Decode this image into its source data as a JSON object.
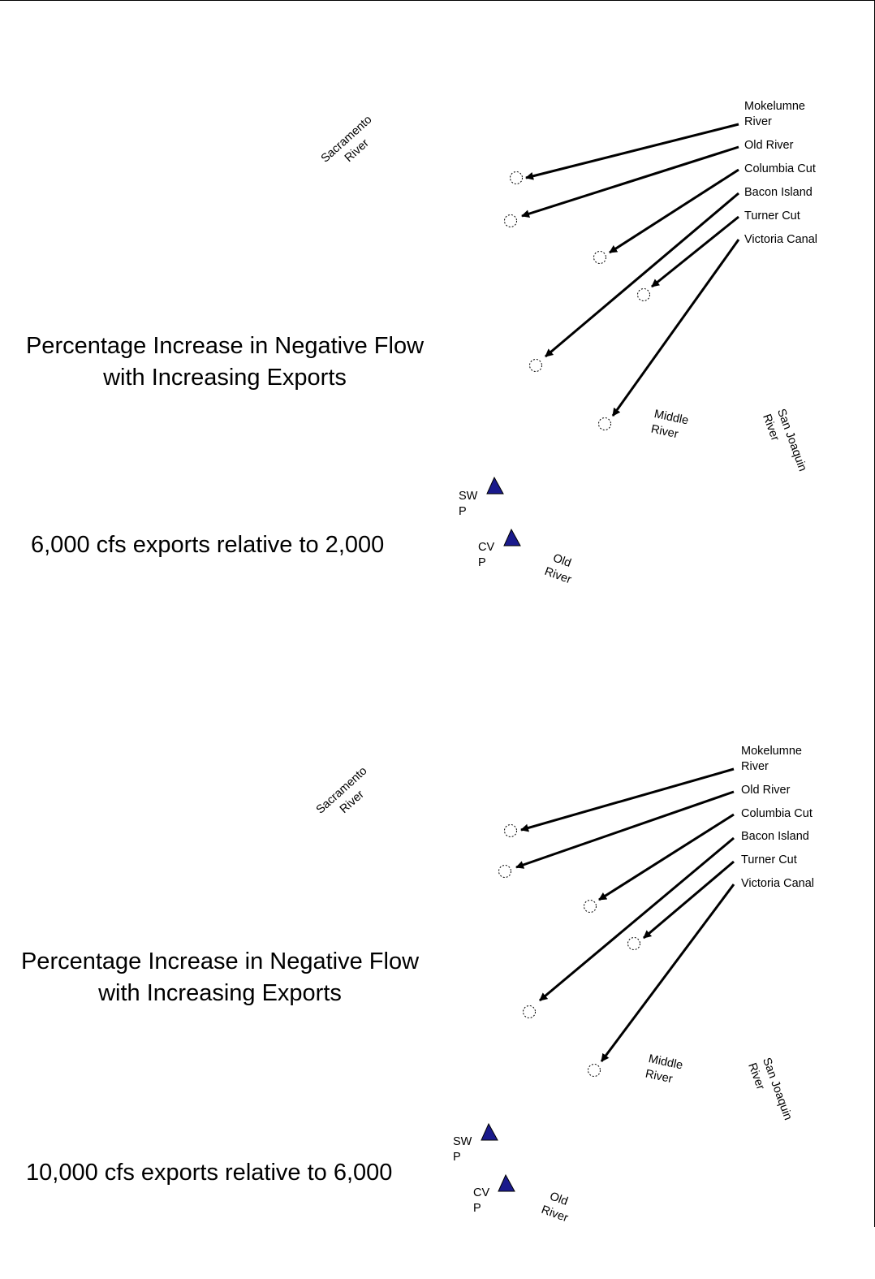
{
  "panels": [
    {
      "title_line1": "Percentage Increase in Negative Flow",
      "title_line2": "with Increasing Exports",
      "subtitle": "6,000 cfs exports relative to 2,000",
      "station_labels": [
        "Mokelumne River",
        "Old River",
        "Columbia Cut",
        "Bacon Island",
        "Turner Cut",
        "Victoria Canal"
      ],
      "river_labels": {
        "sacramento": [
          "Sacramento",
          "River"
        ],
        "middle": [
          "Middle",
          "River"
        ],
        "san_joaquin": [
          "San Joaquin",
          "River"
        ],
        "old": [
          "Old",
          "River"
        ]
      },
      "pumps": {
        "swp": [
          "SW",
          "P"
        ],
        "cvp": [
          "CV",
          "P"
        ]
      }
    },
    {
      "title_line1": "Percentage Increase in Negative Flow",
      "title_line2": "with Increasing Exports",
      "subtitle": "10,000 cfs exports relative to 6,000",
      "station_labels": [
        "Mokelumne River",
        "Old River",
        "Columbia Cut",
        "Bacon Island",
        "Turner Cut",
        "Victoria Canal"
      ],
      "river_labels": {
        "sacramento": [
          "Sacramento",
          "River"
        ],
        "middle": [
          "Middle",
          "River"
        ],
        "san_joaquin": [
          "San Joaquin",
          "River"
        ],
        "old": [
          "Old",
          "River"
        ]
      },
      "pumps": {
        "swp": [
          "SW",
          "P"
        ],
        "cvp": [
          "CV",
          "P"
        ]
      }
    }
  ],
  "colors": {
    "pump_fill": "#1a1a8c",
    "arrow": "#000000"
  }
}
